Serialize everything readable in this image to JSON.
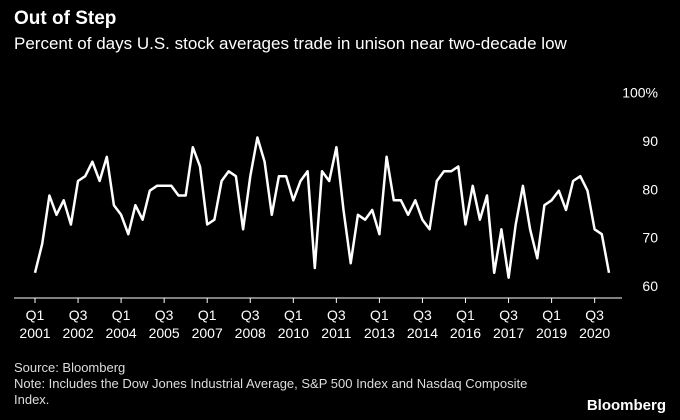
{
  "chart_data": {
    "type": "line",
    "title": "Out of Step",
    "subtitle": "Percent of days U.S. stock averages trade in unison near two-decade low",
    "source": "Source: Bloomberg",
    "note": "Note: Includes the Dow Jones Industrial Average, S&P 500 Index and Nasdaq Composite Index.",
    "brand": "Bloomberg",
    "categories": [
      "Q1 2001",
      null,
      null,
      null,
      null,
      null,
      "Q3 2002",
      null,
      null,
      null,
      null,
      null,
      "Q1 2004",
      null,
      null,
      null,
      null,
      null,
      "Q3 2005",
      null,
      null,
      null,
      null,
      null,
      "Q1 2007",
      null,
      null,
      null,
      null,
      null,
      "Q3 2008",
      null,
      null,
      null,
      null,
      null,
      "Q1 2010",
      null,
      null,
      null,
      null,
      null,
      "Q3 2011",
      null,
      null,
      null,
      null,
      null,
      "Q1 2013",
      null,
      null,
      null,
      null,
      null,
      "Q3 2014",
      null,
      null,
      null,
      null,
      null,
      "Q1 2016",
      null,
      null,
      null,
      null,
      null,
      "Q3 2017",
      null,
      null,
      null,
      null,
      null,
      "Q1 2019",
      null,
      null,
      null,
      null,
      null,
      "Q3 2020",
      null,
      null
    ],
    "values": [
      63,
      69,
      79,
      75,
      78,
      73,
      82,
      83,
      86,
      82,
      87,
      77,
      75,
      71,
      77,
      74,
      80,
      81,
      81,
      81,
      79,
      79,
      89,
      85,
      73,
      74,
      82,
      84,
      83,
      72,
      83,
      91,
      86,
      75,
      83,
      83,
      78,
      82,
      84,
      64,
      84,
      82,
      89,
      76,
      65,
      75,
      74,
      76,
      71,
      87,
      78,
      78,
      75,
      78,
      74,
      72,
      82,
      84,
      84,
      85,
      73,
      81,
      74,
      79,
      63,
      72,
      62,
      73,
      81,
      72,
      66,
      77,
      78,
      80,
      76,
      82,
      83,
      80,
      72,
      71,
      63
    ],
    "color": "#ffffff",
    "ylim": [
      58,
      100
    ],
    "yticks": [
      60,
      70,
      80,
      90,
      {
        "value": 100,
        "label": "100%"
      }
    ]
  }
}
